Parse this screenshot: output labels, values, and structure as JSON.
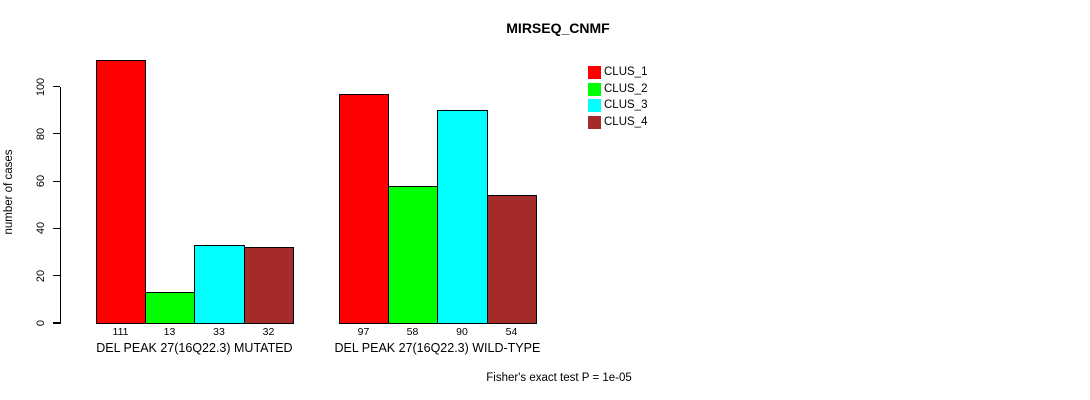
{
  "chart_data": {
    "type": "bar",
    "title": "MIRSEQ_CNMF",
    "ylabel": "number of cases",
    "xlabel": "",
    "annotation": "Fisher's exact test P = 1e-05",
    "groups": [
      {
        "label": "DEL PEAK 27(16Q22.3) MUTATED",
        "values": [
          111,
          13,
          33,
          32
        ]
      },
      {
        "label": "DEL PEAK 27(16Q22.3) WILD-TYPE",
        "values": [
          97,
          58,
          90,
          54
        ]
      }
    ],
    "series": [
      "CLUS_1",
      "CLUS_2",
      "CLUS_3",
      "CLUS_4"
    ],
    "colors": [
      "#FF0000",
      "#00FF00",
      "#00FFFF",
      "#A52A2A"
    ],
    "yticks": [
      0,
      20,
      40,
      60,
      80,
      100
    ],
    "ylim": [
      0,
      113
    ],
    "bar_value_labels": true,
    "legend_position": "top-right",
    "grid": false
  }
}
